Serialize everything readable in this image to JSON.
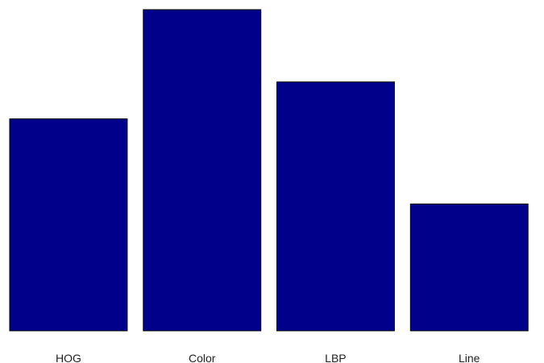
{
  "chart_data": {
    "type": "bar",
    "categories": [
      "HOG",
      "Color",
      "LBP",
      "Line"
    ],
    "values": [
      0.66,
      1.0,
      0.775,
      0.395
    ],
    "ylim": [
      0,
      1
    ],
    "grid": false,
    "axes_visible": false,
    "bar_color": "#00008b"
  }
}
